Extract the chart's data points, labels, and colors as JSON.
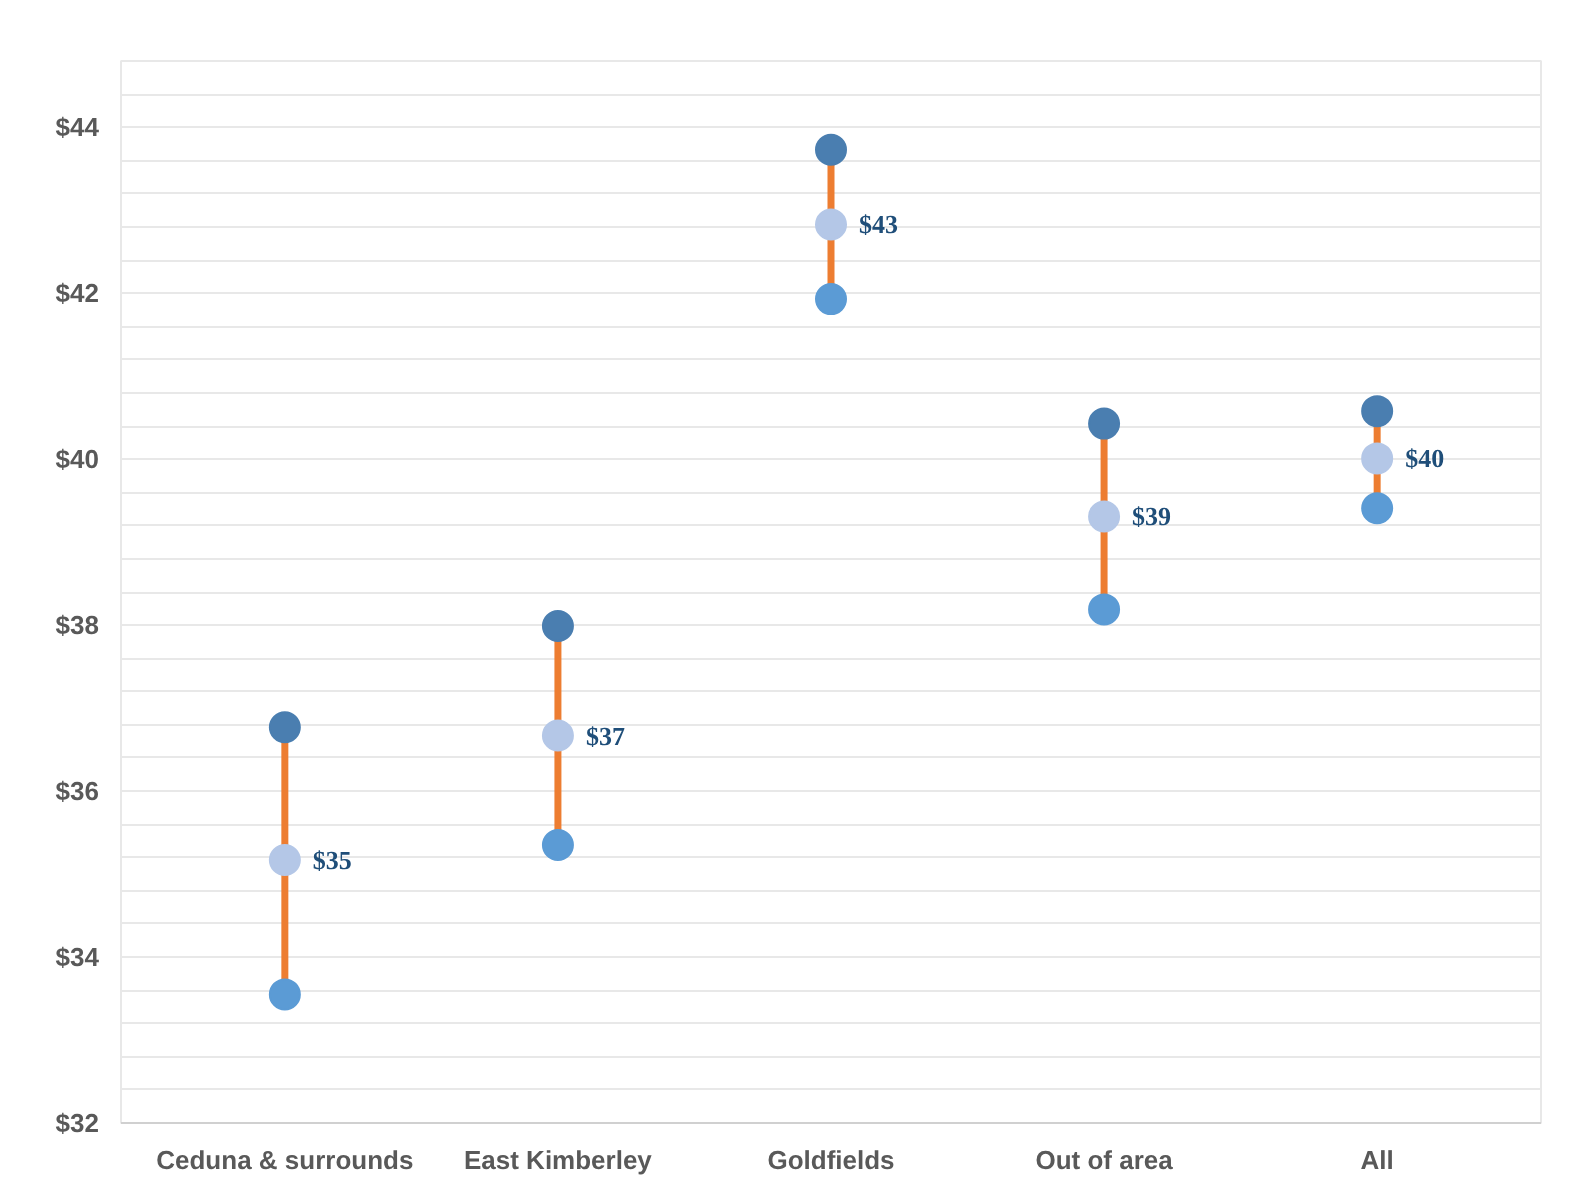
{
  "chart_data": {
    "type": "scatter",
    "categories": [
      "Ceduna & surrounds",
      "East Kimberley",
      "Goldfields",
      "Out of area",
      "All"
    ],
    "ylim": [
      32,
      44.8
    ],
    "yticks": [
      {
        "value": 32,
        "label": "$32"
      },
      {
        "value": 32.4,
        "label": null
      },
      {
        "value": 32.8,
        "label": null
      },
      {
        "value": 33.2,
        "label": null
      },
      {
        "value": 33.6,
        "label": null
      },
      {
        "value": 34,
        "label": "$34"
      },
      {
        "value": 34.4,
        "label": null
      },
      {
        "value": 34.8,
        "label": null
      },
      {
        "value": 35.2,
        "label": null
      },
      {
        "value": 35.6,
        "label": null
      },
      {
        "value": 36,
        "label": "$36"
      },
      {
        "value": 36.4,
        "label": null
      },
      {
        "value": 36.8,
        "label": null
      },
      {
        "value": 37.2,
        "label": null
      },
      {
        "value": 37.6,
        "label": null
      },
      {
        "value": 38,
        "label": "$38"
      },
      {
        "value": 38.4,
        "label": null
      },
      {
        "value": 38.8,
        "label": null
      },
      {
        "value": 39.2,
        "label": null
      },
      {
        "value": 39.6,
        "label": null
      },
      {
        "value": 40,
        "label": "$40"
      },
      {
        "value": 40.4,
        "label": null
      },
      {
        "value": 40.8,
        "label": null
      },
      {
        "value": 41.2,
        "label": null
      },
      {
        "value": 41.6,
        "label": null
      },
      {
        "value": 42,
        "label": "$42"
      },
      {
        "value": 42.4,
        "label": null
      },
      {
        "value": 42.8,
        "label": null
      },
      {
        "value": 43.2,
        "label": null
      },
      {
        "value": 43.6,
        "label": null
      },
      {
        "value": 44,
        "label": "$44"
      },
      {
        "value": 44.4,
        "label": null
      },
      {
        "value": 44.8,
        "label": null
      }
    ],
    "grid": "y",
    "marker": "circle",
    "series": [
      {
        "color": "#4a7eb0",
        "values": [
          36.77,
          37.99,
          43.73,
          40.43,
          40.58
        ]
      },
      {
        "color": "#5b9bd5",
        "values": [
          33.55,
          35.35,
          41.93,
          38.19,
          39.41
        ]
      },
      {
        "color": "#b4c7e7",
        "values": [
          35.17,
          36.67,
          42.83,
          39.31,
          40.01
        ],
        "value_labels": [
          "$35",
          "$37",
          "$43",
          "$39",
          "$40"
        ],
        "errors": [
          [
            1.6,
            1.6
          ],
          [
            1.3,
            1.3
          ],
          [
            0.9,
            0.9
          ],
          [
            1.1,
            1.1
          ],
          [
            0.6,
            0.6
          ]
        ]
      }
    ]
  }
}
